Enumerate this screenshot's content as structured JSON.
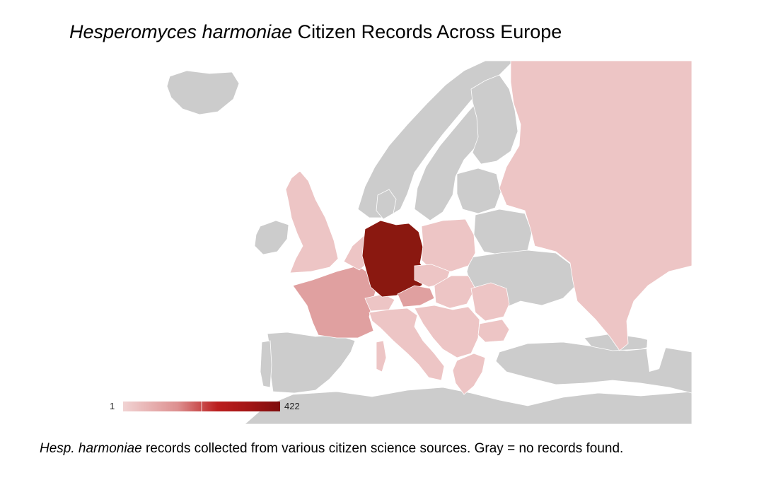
{
  "title": {
    "italic": "Hesperomyces harmoniae",
    "rest": "Citizen Records Across Europe"
  },
  "legend": {
    "min_label": "1",
    "max_label": "422",
    "min_value": 1,
    "max_value": 422,
    "colors": [
      "#f1d3d3",
      "#8a1810"
    ]
  },
  "caption": {
    "italic": "Hesp. harmoniae",
    "rest": "records collected from various citizen science sources. Gray = no records found."
  },
  "map": {
    "no_data_color": "#cccccc",
    "water_color": "#ffffff",
    "regions": [
      {
        "name": "Germany",
        "tier": "highest"
      },
      {
        "name": "France",
        "tier": "medium"
      },
      {
        "name": "Austria",
        "tier": "medium"
      },
      {
        "name": "United Kingdom",
        "tier": "low"
      },
      {
        "name": "Belgium",
        "tier": "low"
      },
      {
        "name": "Netherlands",
        "tier": "low"
      },
      {
        "name": "Switzerland",
        "tier": "low"
      },
      {
        "name": "Italy",
        "tier": "low"
      },
      {
        "name": "Poland",
        "tier": "low"
      },
      {
        "name": "Czechia",
        "tier": "low"
      },
      {
        "name": "Slovakia",
        "tier": "low"
      },
      {
        "name": "Hungary",
        "tier": "low"
      },
      {
        "name": "Slovenia",
        "tier": "low"
      },
      {
        "name": "Croatia",
        "tier": "low"
      },
      {
        "name": "Serbia",
        "tier": "low"
      },
      {
        "name": "Romania",
        "tier": "low"
      },
      {
        "name": "Bulgaria",
        "tier": "low"
      },
      {
        "name": "Greece",
        "tier": "low"
      },
      {
        "name": "Russia",
        "tier": "low"
      },
      {
        "name": "Spain",
        "tier": "none"
      },
      {
        "name": "Portugal",
        "tier": "none"
      },
      {
        "name": "Norway",
        "tier": "none"
      },
      {
        "name": "Sweden",
        "tier": "none"
      },
      {
        "name": "Finland",
        "tier": "none"
      },
      {
        "name": "Denmark",
        "tier": "none"
      },
      {
        "name": "Iceland",
        "tier": "none"
      },
      {
        "name": "Ireland",
        "tier": "none"
      },
      {
        "name": "Baltic states",
        "tier": "none"
      },
      {
        "name": "Belarus",
        "tier": "none"
      },
      {
        "name": "Ukraine",
        "tier": "none"
      },
      {
        "name": "Turkey",
        "tier": "none"
      },
      {
        "name": "North Africa",
        "tier": "none"
      },
      {
        "name": "Caucasus",
        "tier": "none"
      }
    ],
    "tier_colors": {
      "highest": "#8a1810",
      "medium": "#e0a0a0",
      "low": "#edc5c5",
      "none": "#cccccc"
    }
  }
}
